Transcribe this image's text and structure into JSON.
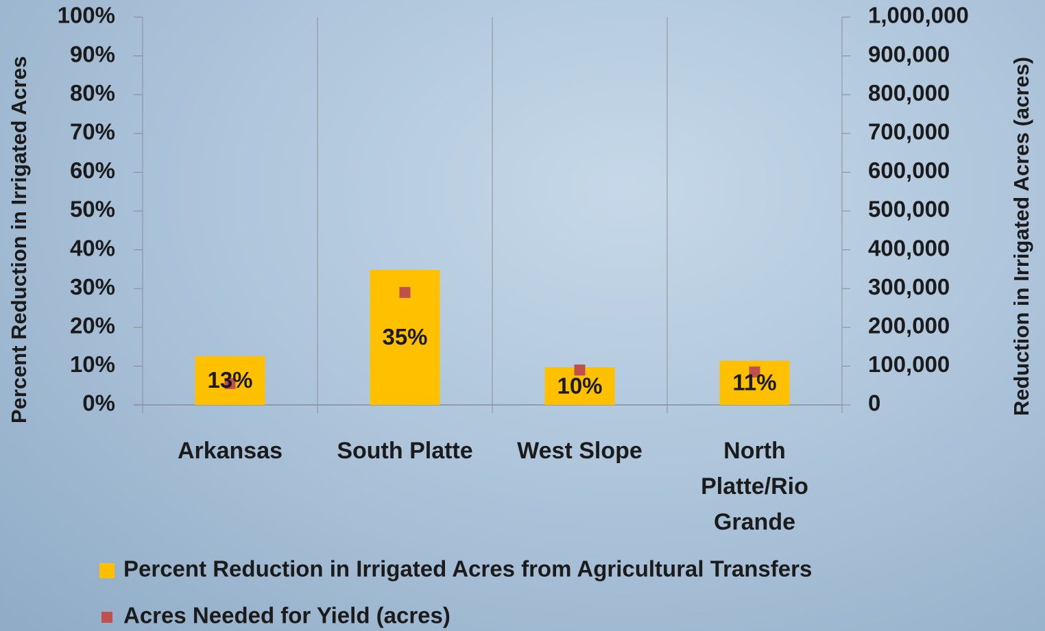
{
  "chart_data": {
    "type": "bar",
    "categories": [
      "Arkansas",
      "South Platte",
      "West Slope",
      "North Platte/Rio Grande"
    ],
    "series": [
      {
        "name": "Percent Reduction in Irrigated Acres from Agricultural Transfers",
        "type": "bar",
        "color": "#ffc000",
        "values": [
          12.6,
          34.8,
          9.7,
          11.4
        ],
        "value_labels": [
          "13%",
          "35%",
          "10%",
          "11%"
        ]
      },
      {
        "name": "Acres Needed for Yield (acres)",
        "type": "scatter",
        "axis": "y2",
        "color": "#c0504d",
        "values": [
          55000,
          290000,
          90000,
          85000
        ]
      }
    ],
    "ylabel": "Percent Reduction in Irrigated Acres",
    "y2label": "Reduction in Irrigated Acres (acres)",
    "ylim": [
      0,
      100
    ],
    "yticks": [
      {
        "value": 0,
        "label": "0%"
      },
      {
        "value": 10,
        "label": "10%"
      },
      {
        "value": 20,
        "label": "20%"
      },
      {
        "value": 30,
        "label": "30%"
      },
      {
        "value": 40,
        "label": "40%"
      },
      {
        "value": 50,
        "label": "50%"
      },
      {
        "value": 60,
        "label": "60%"
      },
      {
        "value": 70,
        "label": "70%"
      },
      {
        "value": 80,
        "label": "80%"
      },
      {
        "value": 90,
        "label": "90%"
      },
      {
        "value": 100,
        "label": "100%"
      }
    ],
    "y2lim": [
      0,
      1000000
    ],
    "y2ticks": [
      0,
      {
        "value": 100000,
        "label": "100,000"
      },
      {
        "value": 200000,
        "label": "200,000"
      },
      {
        "value": 300000,
        "label": "300,000"
      },
      {
        "value": 400000,
        "label": "400,000"
      },
      {
        "value": 500000,
        "label": "500,000"
      },
      {
        "value": 600000,
        "label": "600,000"
      },
      {
        "value": 700000,
        "label": "700,000"
      },
      {
        "value": 800000,
        "label": "800,000"
      },
      {
        "value": 900000,
        "label": "900,000"
      },
      {
        "value": 1000000,
        "label": "1,000,000"
      }
    ],
    "grid": true,
    "legend": "bottom"
  }
}
